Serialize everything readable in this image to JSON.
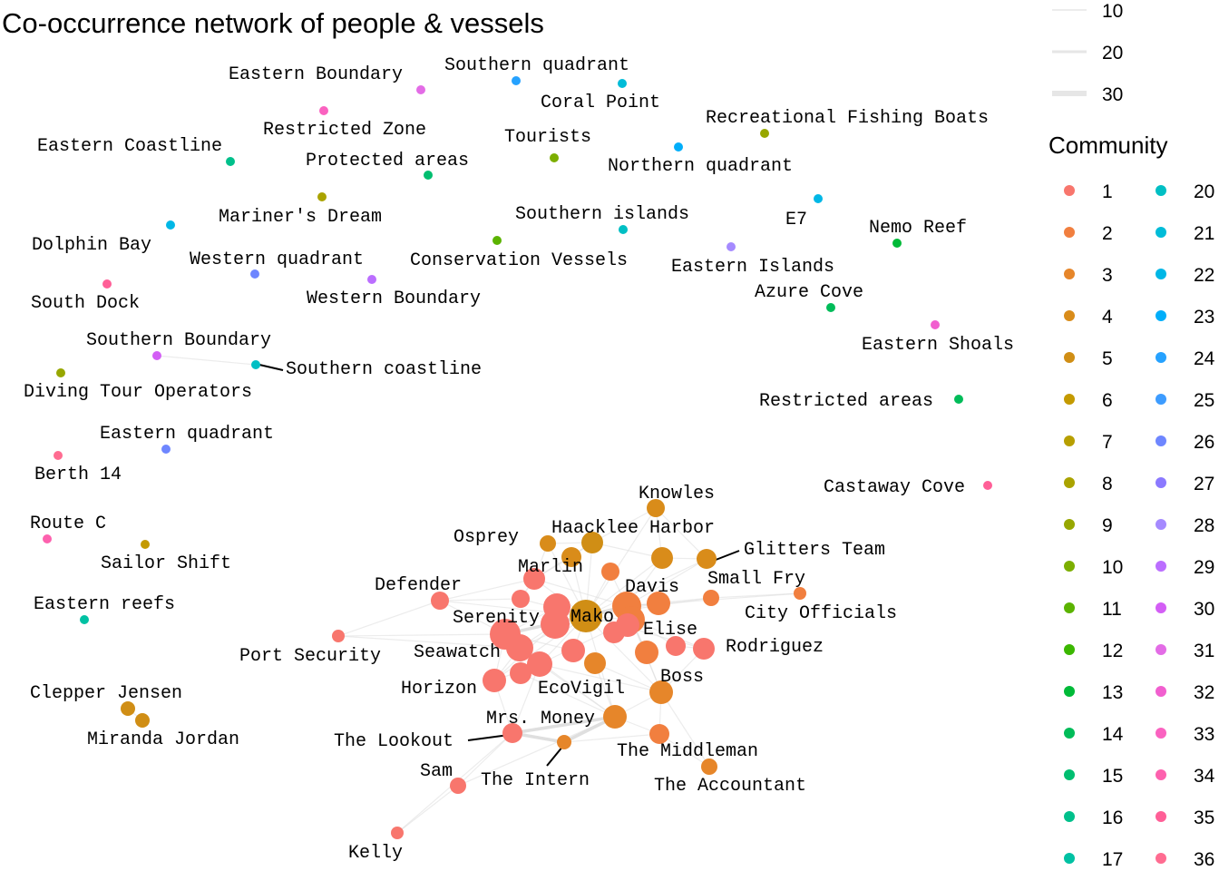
{
  "title": "Co-occurrence network of people & vessels",
  "legend": {
    "width_entries": [
      "10",
      "20",
      "30"
    ],
    "community_title": "Community",
    "community_entries": [
      "1",
      "2",
      "3",
      "4",
      "5",
      "6",
      "7",
      "8",
      "9",
      "10",
      "11",
      "12",
      "13",
      "14",
      "15",
      "16",
      "17",
      "20",
      "21",
      "22",
      "23",
      "24",
      "25",
      "26",
      "27",
      "28",
      "29",
      "30",
      "31",
      "32",
      "33",
      "34",
      "35",
      "36"
    ]
  },
  "colors": {
    "1": "#F8766D",
    "2": "#F17F3F",
    "3": "#E6862A",
    "4": "#D98C1A",
    "5": "#D08E15",
    "6": "#C49A00",
    "7": "#B79F00",
    "8": "#AAA300",
    "9": "#97A700",
    "10": "#7CAE00",
    "11": "#5BB300",
    "12": "#3BB700",
    "13": "#00BA38",
    "14": "#00BC59",
    "15": "#00BE70",
    "16": "#00C08B",
    "17": "#00C1A3",
    "20": "#00BFC4",
    "21": "#00BCD8",
    "22": "#00B7E6",
    "23": "#00AEFA",
    "24": "#26A2FF",
    "25": "#3D9CFF",
    "26": "#6E86FF",
    "27": "#8B79FF",
    "28": "#A58AFF",
    "29": "#BB6EFF",
    "30": "#D35EF5",
    "31": "#E36CE6",
    "32": "#F15FCF",
    "33": "#FA62C0",
    "34": "#FD61AE",
    "35": "#FF5F97",
    "36": "#FF6C91"
  },
  "nodes": [
    {
      "id": "Eastern Boundary",
      "label": "Eastern Boundary",
      "community": "31"
    },
    {
      "id": "Southern quadrant",
      "label": "Southern quadrant",
      "community": "24"
    },
    {
      "id": "Coral Point",
      "label": "Coral Point",
      "community": "21"
    },
    {
      "id": "Restricted Zone",
      "label": "Restricted Zone",
      "community": "33"
    },
    {
      "id": "Recreational Fishing Boats",
      "label": "Recreational Fishing Boats",
      "community": "9"
    },
    {
      "id": "Eastern Coastline",
      "label": "Eastern Coastline",
      "community": "16"
    },
    {
      "id": "Tourists",
      "label": "Tourists",
      "community": "10"
    },
    {
      "id": "Protected areas",
      "label": "Protected areas",
      "community": "15"
    },
    {
      "id": "Northern quadrant",
      "label": "Northern quadrant",
      "community": "23"
    },
    {
      "id": "Mariner's Dream",
      "label": "Mariner's Dream",
      "community": "8"
    },
    {
      "id": "E7",
      "label": "E7",
      "community": "22"
    },
    {
      "id": "Southern islands",
      "label": "Southern islands",
      "community": "20"
    },
    {
      "id": "Nemo Reef",
      "label": "Nemo Reef",
      "community": "13"
    },
    {
      "id": "Dolphin Bay",
      "label": "Dolphin Bay",
      "community": "22"
    },
    {
      "id": "Western quadrant",
      "label": "Western quadrant",
      "community": "26"
    },
    {
      "id": "Conservation Vessels",
      "label": "Conservation Vessels",
      "community": "11"
    },
    {
      "id": "Eastern Islands",
      "label": "Eastern Islands",
      "community": "28"
    },
    {
      "id": "South Dock",
      "label": "South Dock",
      "community": "35"
    },
    {
      "id": "Western Boundary",
      "label": "Western Boundary",
      "community": "29"
    },
    {
      "id": "Azure Cove",
      "label": "Azure Cove",
      "community": "14"
    },
    {
      "id": "Eastern Shoals",
      "label": "Eastern Shoals",
      "community": "32"
    },
    {
      "id": "Southern Boundary",
      "label": "Southern Boundary",
      "community": "30"
    },
    {
      "id": "Southern coastline",
      "label": "Southern coastline",
      "community": "20"
    },
    {
      "id": "Diving Tour Operators",
      "label": "Diving Tour Operators",
      "community": "9"
    },
    {
      "id": "Restricted areas",
      "label": "Restricted areas",
      "community": "14"
    },
    {
      "id": "Eastern quadrant",
      "label": "Eastern quadrant",
      "community": "26"
    },
    {
      "id": "Berth 14",
      "label": "Berth 14",
      "community": "36"
    },
    {
      "id": "Castaway Cove",
      "label": "Castaway Cove",
      "community": "35"
    },
    {
      "id": "Route C",
      "label": "Route C",
      "community": "34"
    },
    {
      "id": "Sailor Shift",
      "label": "Sailor Shift",
      "community": "6"
    },
    {
      "id": "Eastern reefs",
      "label": "Eastern reefs",
      "community": "17"
    },
    {
      "id": "Clepper Jensen",
      "label": "Clepper Jensen",
      "community": "5"
    },
    {
      "id": "Miranda Jordan",
      "label": "Miranda Jordan",
      "community": "5"
    },
    {
      "id": "Knowles",
      "label": "Knowles",
      "community": "4"
    },
    {
      "id": "Osprey",
      "label": "Osprey",
      "community": "4"
    },
    {
      "id": "Haacklee Harbor",
      "label": "Haacklee Harbor",
      "community": "5"
    },
    {
      "id": "Glitters Team",
      "label": "Glitters Team",
      "community": "4"
    },
    {
      "id": "Marlin",
      "label": "Marlin",
      "community": "1"
    },
    {
      "id": "Defender",
      "label": "Defender",
      "community": "1"
    },
    {
      "id": "Small Fry",
      "label": "Small Fry",
      "community": "2"
    },
    {
      "id": "Davis",
      "label": "Davis",
      "community": "2"
    },
    {
      "id": "City Officials",
      "label": "City Officials",
      "community": "2"
    },
    {
      "id": "Serenity",
      "label": "Serenity",
      "community": "1"
    },
    {
      "id": "Mako",
      "label": "Mako",
      "community": "5"
    },
    {
      "id": "Elise",
      "label": "Elise",
      "community": "2"
    },
    {
      "id": "Rodriguez",
      "label": "Rodriguez",
      "community": "1"
    },
    {
      "id": "Port Security",
      "label": "Port Security",
      "community": "1"
    },
    {
      "id": "Seawatch",
      "label": "Seawatch",
      "community": "1"
    },
    {
      "id": "Boss",
      "label": "Boss",
      "community": "3"
    },
    {
      "id": "Horizon",
      "label": "Horizon",
      "community": "1"
    },
    {
      "id": "EcoVigil",
      "label": "EcoVigil",
      "community": "1"
    },
    {
      "id": "Mrs. Money",
      "label": "Mrs. Money",
      "community": "3"
    },
    {
      "id": "The Lookout",
      "label": "The Lookout",
      "community": "1"
    },
    {
      "id": "The Middleman",
      "label": "The Middleman",
      "community": "2"
    },
    {
      "id": "The Intern",
      "label": "The Intern",
      "community": "3"
    },
    {
      "id": "The Accountant",
      "label": "The Accountant",
      "community": "3"
    },
    {
      "id": "Sam",
      "label": "Sam",
      "community": "1"
    },
    {
      "id": "Kelly",
      "label": "Kelly",
      "community": "1"
    },
    {
      "id": "n1",
      "label": "",
      "community": "4"
    },
    {
      "id": "n2",
      "label": "",
      "community": "4"
    },
    {
      "id": "n3",
      "label": "",
      "community": "1"
    },
    {
      "id": "n4",
      "label": "",
      "community": "1"
    },
    {
      "id": "n5",
      "label": "",
      "community": "2"
    },
    {
      "id": "n6",
      "label": "",
      "community": "2"
    },
    {
      "id": "n7",
      "label": "",
      "community": "1"
    },
    {
      "id": "n8",
      "label": "",
      "community": "1"
    },
    {
      "id": "n9",
      "label": "",
      "community": "1"
    },
    {
      "id": "n10",
      "label": "",
      "community": "3"
    },
    {
      "id": "n11",
      "label": "",
      "community": "1"
    },
    {
      "id": "n12",
      "label": "",
      "community": "2"
    },
    {
      "id": "n13",
      "label": "",
      "community": "1"
    },
    {
      "id": "n14",
      "label": "",
      "community": "1"
    }
  ],
  "edges": [
    [
      "Mako",
      "Davis"
    ],
    [
      "Mako",
      "Elise"
    ],
    [
      "Mako",
      "Serenity"
    ],
    [
      "Mako",
      "Marlin"
    ],
    [
      "Mako",
      "Boss"
    ],
    [
      "Mako",
      "EcoVigil"
    ],
    [
      "Mako",
      "Seawatch"
    ],
    [
      "Mako",
      "Mrs. Money"
    ],
    [
      "Mako",
      "Haacklee Harbor"
    ],
    [
      "Mako",
      "Osprey"
    ],
    [
      "Mako",
      "Knowles"
    ],
    [
      "Mako",
      "Glitters Team"
    ],
    [
      "Mako",
      "Small Fry"
    ],
    [
      "Mako",
      "n1"
    ],
    [
      "Mako",
      "n2"
    ],
    [
      "Mako",
      "n3"
    ],
    [
      "Mako",
      "n4"
    ],
    [
      "Mako",
      "n5"
    ],
    [
      "Mako",
      "n6"
    ],
    [
      "Mako",
      "n7"
    ],
    [
      "Mako",
      "n8"
    ],
    [
      "Mako",
      "Horizon"
    ],
    [
      "Mako",
      "Defender"
    ],
    [
      "Mako",
      "Rodriguez"
    ],
    [
      "Davis",
      "Elise"
    ],
    [
      "Davis",
      "Small Fry"
    ],
    [
      "Davis",
      "City Officials"
    ],
    [
      "Davis",
      "Glitters Team"
    ],
    [
      "Davis",
      "Boss"
    ],
    [
      "Davis",
      "n5"
    ],
    [
      "Davis",
      "n6"
    ],
    [
      "Davis",
      "Marlin"
    ],
    [
      "Elise",
      "Rodriguez"
    ],
    [
      "Elise",
      "Boss"
    ],
    [
      "Elise",
      "n12"
    ],
    [
      "Elise",
      "EcoVigil"
    ],
    [
      "Elise",
      "n9"
    ],
    [
      "Serenity",
      "Seawatch"
    ],
    [
      "Serenity",
      "Horizon"
    ],
    [
      "Serenity",
      "Defender"
    ],
    [
      "Serenity",
      "Port Security"
    ],
    [
      "Serenity",
      "EcoVigil"
    ],
    [
      "Serenity",
      "n7"
    ],
    [
      "Serenity",
      "n8"
    ],
    [
      "Seawatch",
      "Horizon"
    ],
    [
      "Seawatch",
      "EcoVigil"
    ],
    [
      "Seawatch",
      "Mrs. Money"
    ],
    [
      "Seawatch",
      "n4"
    ],
    [
      "Horizon",
      "The Lookout"
    ],
    [
      "Horizon",
      "EcoVigil"
    ],
    [
      "Horizon",
      "n4"
    ],
    [
      "EcoVigil",
      "Mrs. Money"
    ],
    [
      "EcoVigil",
      "The Lookout"
    ],
    [
      "EcoVigil",
      "Boss"
    ],
    [
      "Mrs. Money",
      "The Intern"
    ],
    [
      "Mrs. Money",
      "The Middleman"
    ],
    [
      "Mrs. Money",
      "The Lookout"
    ],
    [
      "Mrs. Money",
      "Boss"
    ],
    [
      "Mrs. Money",
      "n10"
    ],
    [
      "Mrs. Money",
      "Sam"
    ],
    [
      "The Intern",
      "The Lookout"
    ],
    [
      "The Intern",
      "The Middleman"
    ],
    [
      "The Middleman",
      "Boss"
    ],
    [
      "The Middleman",
      "The Accountant"
    ],
    [
      "Boss",
      "The Accountant"
    ],
    [
      "The Lookout",
      "Sam"
    ],
    [
      "Sam",
      "Kelly"
    ],
    [
      "The Lookout",
      "Kelly"
    ],
    [
      "Marlin",
      "Osprey"
    ],
    [
      "Marlin",
      "Haacklee Harbor"
    ],
    [
      "Marlin",
      "n1"
    ],
    [
      "Marlin",
      "n3"
    ],
    [
      "Marlin",
      "Defender"
    ],
    [
      "Haacklee Harbor",
      "Knowles"
    ],
    [
      "Haacklee Harbor",
      "n1"
    ],
    [
      "Haacklee Harbor",
      "n2"
    ],
    [
      "Haacklee Harbor",
      "Osprey"
    ],
    [
      "Knowles",
      "n2"
    ],
    [
      "Knowles",
      "Glitters Team"
    ],
    [
      "n2",
      "Glitters Team"
    ],
    [
      "n2",
      "Davis"
    ],
    [
      "Small Fry",
      "City Officials"
    ],
    [
      "Rodriguez",
      "n9"
    ],
    [
      "Rodriguez",
      "Boss"
    ],
    [
      "Port Security",
      "Seawatch"
    ],
    [
      "Port Security",
      "Defender"
    ],
    [
      "Defender",
      "n3"
    ],
    [
      "n11",
      "Mako"
    ],
    [
      "n11",
      "Davis"
    ],
    [
      "n13",
      "Elise"
    ],
    [
      "n14",
      "Mrs. Money"
    ],
    [
      "n10",
      "Boss"
    ],
    [
      "Clepper Jensen",
      "Miranda Jordan"
    ],
    [
      "Southern Boundary",
      "Southern coastline"
    ]
  ]
}
